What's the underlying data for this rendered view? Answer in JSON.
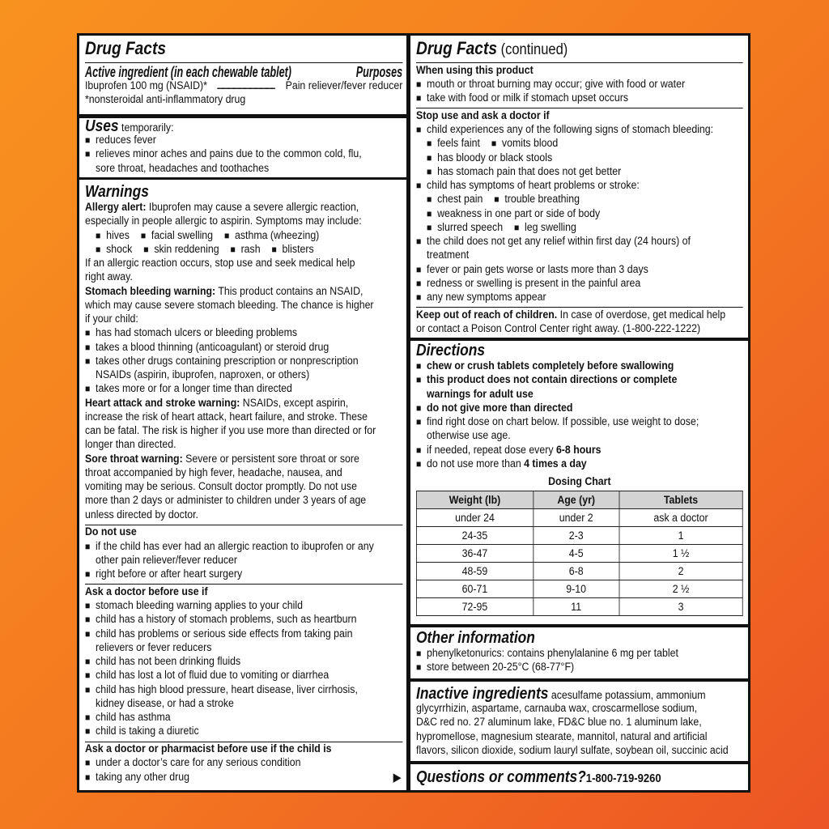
{
  "colors": {
    "background_top": "#f8921f",
    "background_bottom": "#ec5524",
    "ink": "#111111",
    "table_header": "#d3d3d3"
  },
  "left": {
    "title": "Drug Facts",
    "active": {
      "heading": "Active ingredient (in each chewable tablet)",
      "purposes": "Purposes",
      "ingredient": "Ibuprofen 100 mg (NSAID)*",
      "dots": "..................................................................",
      "purpose": "Pain reliever/fever reducer",
      "footnote": "*nonsteroidal anti-inflammatory drug"
    },
    "uses": {
      "heading": "Uses",
      "heading_suffix": " temporarily:",
      "lines": [
        {
          "k": "bullet",
          "s": [
            {
              "t": "reduces fever"
            }
          ]
        },
        {
          "k": "bullet",
          "s": [
            {
              "t": "relieves minor aches and pains due to the common cold, flu,"
            }
          ]
        },
        {
          "k": "cont",
          "s": [
            {
              "t": "sore throat, headaches and toothaches"
            }
          ]
        }
      ]
    },
    "warnings": {
      "heading": "Warnings",
      "lines": [
        {
          "k": "plain",
          "s": [
            {
              "b": "Allergy alert:"
            },
            {
              "t": " Ibuprofen may cause a severe allergic reaction,"
            }
          ]
        },
        {
          "k": "plain",
          "s": [
            {
              "t": "especially in people allergic to aspirin. Symptoms may include:"
            }
          ]
        },
        {
          "k": "items",
          "items": [
            "hives",
            "facial swelling",
            "asthma (wheezing)"
          ]
        },
        {
          "k": "items",
          "items": [
            "shock",
            "skin reddening",
            "rash",
            "blisters"
          ]
        },
        {
          "k": "plain",
          "s": [
            {
              "t": "If an allergic reaction occurs, stop use and seek medical help"
            }
          ]
        },
        {
          "k": "plain",
          "s": [
            {
              "t": "right away."
            }
          ]
        },
        {
          "k": "plain",
          "s": [
            {
              "b": "Stomach bleeding warning:"
            },
            {
              "t": " This product contains an NSAID,"
            }
          ]
        },
        {
          "k": "plain",
          "s": [
            {
              "t": "which may cause severe stomach bleeding. The chance is higher"
            }
          ]
        },
        {
          "k": "plain",
          "s": [
            {
              "t": "if your child:"
            }
          ]
        },
        {
          "k": "bullet",
          "s": [
            {
              "t": "has had stomach ulcers or bleeding problems"
            }
          ]
        },
        {
          "k": "bullet",
          "s": [
            {
              "t": "takes a blood thinning (anticoagulant) or steroid drug"
            }
          ]
        },
        {
          "k": "bullet",
          "s": [
            {
              "t": "takes other drugs containing prescription or nonprescription"
            }
          ]
        },
        {
          "k": "cont",
          "s": [
            {
              "t": "NSAIDs (aspirin, ibuprofen, naproxen, or others)"
            }
          ]
        },
        {
          "k": "bullet",
          "s": [
            {
              "t": "takes more or for a longer time than directed"
            }
          ]
        },
        {
          "k": "plain",
          "s": [
            {
              "b": "Heart attack and stroke warning:"
            },
            {
              "t": " NSAIDs, except aspirin,"
            }
          ]
        },
        {
          "k": "plain",
          "s": [
            {
              "t": "increase the risk of heart attack, heart failure, and stroke. These"
            }
          ]
        },
        {
          "k": "plain",
          "s": [
            {
              "t": "can be fatal. The risk is higher if you use more than directed or for"
            }
          ]
        },
        {
          "k": "plain",
          "s": [
            {
              "t": "longer than directed."
            }
          ]
        },
        {
          "k": "plain",
          "s": [
            {
              "b": "Sore throat warning:"
            },
            {
              "t": " Severe or persistent sore throat or sore"
            }
          ]
        },
        {
          "k": "plain",
          "s": [
            {
              "t": "throat accompanied by high fever, headache, nausea, and"
            }
          ]
        },
        {
          "k": "plain",
          "s": [
            {
              "t": "vomiting may be serious. Consult doctor promptly. Do not use"
            }
          ]
        },
        {
          "k": "plain",
          "s": [
            {
              "t": "more than 2 days or administer to children under 3 years of age"
            }
          ]
        },
        {
          "k": "plain",
          "s": [
            {
              "t": "unless directed by doctor."
            }
          ]
        },
        {
          "k": "rule"
        },
        {
          "k": "sub",
          "s": [
            {
              "b": "Do not use"
            }
          ]
        },
        {
          "k": "bullet",
          "s": [
            {
              "t": "if the child has ever had an allergic reaction to ibuprofen or any"
            }
          ]
        },
        {
          "k": "cont",
          "s": [
            {
              "t": "other pain reliever/fever reducer"
            }
          ]
        },
        {
          "k": "bullet",
          "s": [
            {
              "t": "right before or after heart surgery"
            }
          ]
        },
        {
          "k": "rule"
        },
        {
          "k": "sub",
          "s": [
            {
              "b": "Ask a doctor before use if"
            }
          ]
        },
        {
          "k": "bullet",
          "s": [
            {
              "t": "stomach bleeding warning applies to your child"
            }
          ]
        },
        {
          "k": "bullet",
          "s": [
            {
              "t": "child has a history of stomach problems, such as heartburn"
            }
          ]
        },
        {
          "k": "bullet",
          "s": [
            {
              "t": "child has problems or serious side effects from taking pain"
            }
          ]
        },
        {
          "k": "cont",
          "s": [
            {
              "t": "relievers or fever reducers"
            }
          ]
        },
        {
          "k": "bullet",
          "s": [
            {
              "t": "child has not been drinking fluids"
            }
          ]
        },
        {
          "k": "bullet",
          "s": [
            {
              "t": "child has lost a lot of fluid due to vomiting or diarrhea"
            }
          ]
        },
        {
          "k": "bullet",
          "s": [
            {
              "t": "child has high blood pressure, heart disease, liver cirrhosis,"
            }
          ]
        },
        {
          "k": "cont",
          "s": [
            {
              "t": "kidney disease, or had a stroke"
            }
          ]
        },
        {
          "k": "bullet",
          "s": [
            {
              "t": "child has asthma"
            }
          ]
        },
        {
          "k": "bullet",
          "s": [
            {
              "t": "child is taking a diuretic"
            }
          ]
        },
        {
          "k": "rule"
        },
        {
          "k": "sub",
          "s": [
            {
              "b": "Ask a doctor or pharmacist before use if the child is"
            }
          ]
        },
        {
          "k": "bullet",
          "s": [
            {
              "t": "under a doctor’s care for any serious condition"
            }
          ]
        },
        {
          "k": "bullet",
          "arrow": true,
          "s": [
            {
              "t": "taking any other drug"
            }
          ]
        }
      ]
    }
  },
  "right": {
    "title": "Drug Facts",
    "title_suffix": " (continued)",
    "continued": {
      "lines": [
        {
          "k": "sub",
          "s": [
            {
              "b": "When using this product"
            }
          ]
        },
        {
          "k": "bullet",
          "s": [
            {
              "t": "mouth or throat burning may occur; give with food or water"
            }
          ]
        },
        {
          "k": "bullet",
          "s": [
            {
              "t": "take with food or milk if stomach upset occurs"
            }
          ]
        },
        {
          "k": "rule"
        },
        {
          "k": "sub",
          "s": [
            {
              "b": "Stop use and ask a doctor if"
            }
          ]
        },
        {
          "k": "bullet",
          "s": [
            {
              "t": "child experiences any of the following signs of stomach bleeding:"
            }
          ]
        },
        {
          "k": "items",
          "items": [
            "feels faint",
            "vomits blood"
          ]
        },
        {
          "k": "items",
          "items": [
            "has bloody or black stools"
          ]
        },
        {
          "k": "items",
          "items": [
            "has stomach pain that does not get better"
          ]
        },
        {
          "k": "bullet",
          "s": [
            {
              "t": "child has symptoms of heart problems or stroke:"
            }
          ]
        },
        {
          "k": "items",
          "items": [
            "chest pain",
            "trouble breathing"
          ]
        },
        {
          "k": "items",
          "items": [
            "weakness in one part or side of body"
          ]
        },
        {
          "k": "items",
          "items": [
            "slurred speech",
            "leg swelling"
          ]
        },
        {
          "k": "bullet",
          "s": [
            {
              "t": "the child does not get any relief within first day (24 hours) of"
            }
          ]
        },
        {
          "k": "cont",
          "s": [
            {
              "t": "treatment"
            }
          ]
        },
        {
          "k": "bullet",
          "s": [
            {
              "t": "fever or pain gets worse or lasts more than 3 days"
            }
          ]
        },
        {
          "k": "bullet",
          "s": [
            {
              "t": "redness or swelling is present in the painful area"
            }
          ]
        },
        {
          "k": "bullet",
          "s": [
            {
              "t": "any new symptoms appear"
            }
          ]
        },
        {
          "k": "rule"
        },
        {
          "k": "plain",
          "s": [
            {
              "b": "Keep out of reach of children."
            },
            {
              "t": " In case of overdose, get medical help"
            }
          ]
        },
        {
          "k": "plain",
          "s": [
            {
              "t": "or contact a Poison Control Center right away. (1-800-222-1222)"
            }
          ]
        }
      ]
    },
    "directions": {
      "heading": "Directions",
      "lines": [
        {
          "k": "bullet",
          "s": [
            {
              "b": "chew or crush tablets completely before swallowing"
            }
          ]
        },
        {
          "k": "bullet",
          "s": [
            {
              "b": "this product does not contain directions or complete"
            }
          ]
        },
        {
          "k": "cont",
          "s": [
            {
              "b": "warnings for adult use"
            }
          ]
        },
        {
          "k": "bullet",
          "s": [
            {
              "b": "do not give more than directed"
            }
          ]
        },
        {
          "k": "bullet",
          "s": [
            {
              "t": "find right dose on chart below. If possible, use weight to dose;"
            }
          ]
        },
        {
          "k": "cont",
          "s": [
            {
              "t": "otherwise use age."
            }
          ]
        },
        {
          "k": "bullet",
          "s": [
            {
              "t": "if needed, repeat dose every "
            },
            {
              "b": "6-8 hours"
            }
          ]
        },
        {
          "k": "bullet",
          "s": [
            {
              "t": "do not use more than "
            },
            {
              "b": "4 times a day"
            }
          ]
        }
      ],
      "chart_title": "Dosing Chart",
      "table": {
        "headers": [
          "Weight (lb)",
          "Age (yr)",
          "Tablets"
        ],
        "rows": [
          [
            "under 24",
            "under 2",
            "ask a doctor"
          ],
          [
            "24-35",
            "2-3",
            "1"
          ],
          [
            "36-47",
            "4-5",
            "1 ½"
          ],
          [
            "48-59",
            "6-8",
            "2"
          ],
          [
            "60-71",
            "9-10",
            "2 ½"
          ],
          [
            "72-95",
            "11",
            "3"
          ]
        ]
      }
    },
    "other": {
      "heading": "Other information",
      "lines": [
        {
          "k": "bullet",
          "s": [
            {
              "t": "phenylketonurics: contains phenylalanine 6 mg per tablet"
            }
          ]
        },
        {
          "k": "bullet",
          "s": [
            {
              "t": "store between 20-25°C (68-77°F)"
            }
          ]
        }
      ]
    },
    "inactive": {
      "heading": "Inactive ingredients",
      "first": " acesulfame potassium, ammonium",
      "lines": [
        {
          "k": "plain",
          "s": [
            {
              "t": "glycyrrhizin, aspartame, carnauba wax, croscarmellose sodium,"
            }
          ]
        },
        {
          "k": "plain",
          "s": [
            {
              "t": "D&C red no. 27 aluminum lake, FD&C blue no. 1 aluminum lake,"
            }
          ]
        },
        {
          "k": "plain",
          "s": [
            {
              "t": "hypromellose, magnesium stearate, mannitol, natural and artificial"
            }
          ]
        },
        {
          "k": "plain",
          "s": [
            {
              "t": "flavors, silicon dioxide, sodium lauryl sulfate, soybean oil, succinic acid"
            }
          ]
        }
      ]
    },
    "questions": {
      "heading": "Questions or comments?",
      "phone": "1-800-719-9260"
    }
  }
}
